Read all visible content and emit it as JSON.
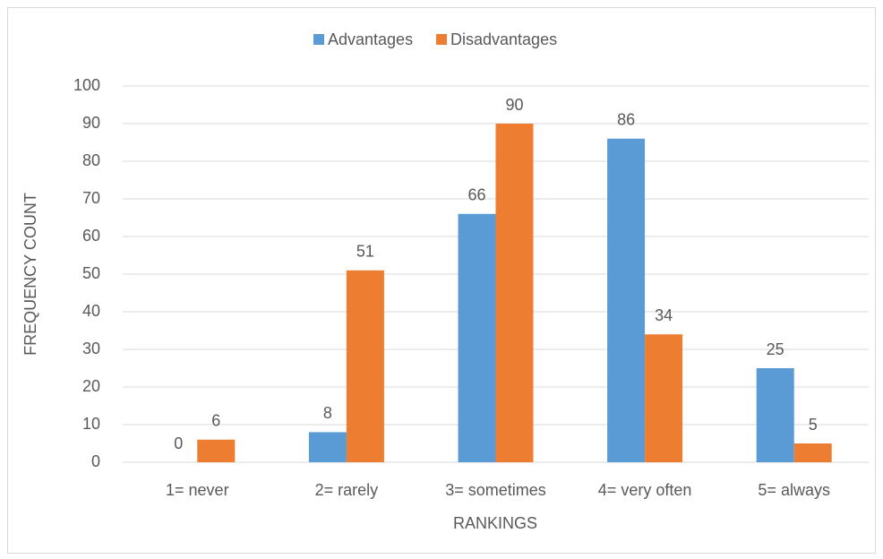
{
  "chart_data": {
    "type": "bar",
    "categories": [
      "1= never",
      "2= rarely",
      "3= sometimes",
      "4= very often",
      "5= always"
    ],
    "series": [
      {
        "name": "Advantages",
        "color": "#5b9bd5",
        "values": [
          0,
          8,
          66,
          86,
          25
        ]
      },
      {
        "name": "Disadvantages",
        "color": "#ed7d31",
        "values": [
          6,
          51,
          90,
          34,
          5
        ]
      }
    ],
    "ylim": [
      0,
      100
    ],
    "yticks": [
      0,
      10,
      20,
      30,
      40,
      50,
      60,
      70,
      80,
      90,
      100
    ],
    "xlabel": "RANKINGS",
    "ylabel": "FREQUENCY COUNT",
    "grid": true,
    "legend": "top"
  }
}
